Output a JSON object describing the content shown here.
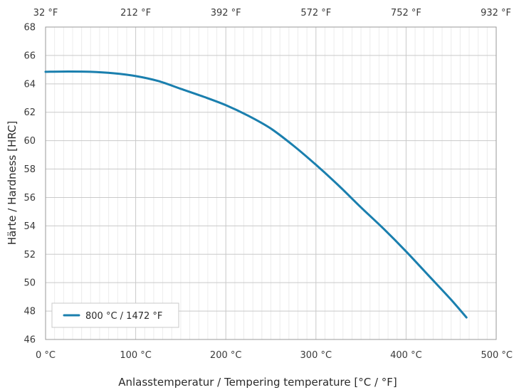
{
  "chart_data": {
    "type": "line",
    "xlabel": "Anlasstemperatur / Tempering temperature [°C / °F]",
    "ylabel": "Härte / Hardness [HRC]",
    "xlim": [
      0,
      500
    ],
    "ylim": [
      46,
      68
    ],
    "x_ticks": [
      0,
      100,
      200,
      300,
      400,
      500
    ],
    "x_tick_labels": [
      "0 °C",
      "100 °C",
      "200 °C",
      "300 °C",
      "400 °C",
      "500 °C"
    ],
    "x_top_tick_labels": [
      "32 °F",
      "212 °F",
      "392 °F",
      "572 °F",
      "752 °F",
      "932 °F"
    ],
    "y_ticks": [
      46,
      48,
      50,
      52,
      54,
      56,
      58,
      60,
      62,
      64,
      66,
      68
    ],
    "y_tick_labels": [
      "46",
      "48",
      "50",
      "52",
      "54",
      "56",
      "58",
      "60",
      "62",
      "64",
      "66",
      "68"
    ],
    "grid": true,
    "legend_position": "bottom-left",
    "series": [
      {
        "name": "800 °C / 1472 °F",
        "color": "#1a7fae",
        "x": [
          0,
          25,
          50,
          75,
          100,
          125,
          150,
          175,
          200,
          225,
          250,
          275,
          300,
          325,
          350,
          375,
          400,
          425,
          450,
          467
        ],
        "y": [
          64.85,
          64.87,
          64.85,
          64.75,
          64.55,
          64.2,
          63.65,
          63.1,
          62.5,
          61.75,
          60.85,
          59.65,
          58.3,
          56.85,
          55.3,
          53.8,
          52.2,
          50.5,
          48.8,
          47.55
        ]
      }
    ]
  }
}
